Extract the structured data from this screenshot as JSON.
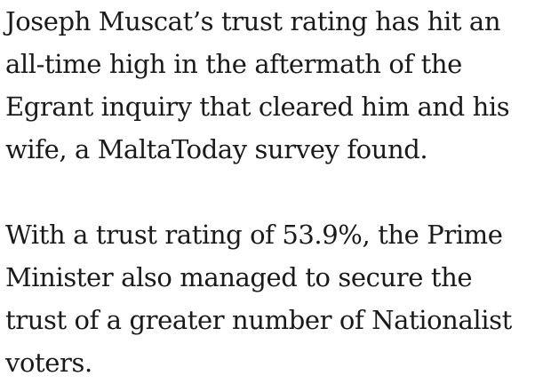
{
  "article": {
    "paragraphs": [
      {
        "lines": [
          "Joseph Muscat’s trust rating has hit an",
          "all-time high in the aftermath of the",
          "Egrant inquiry that cleared him and his",
          "wife, a MaltaToday survey found."
        ]
      },
      {
        "lines": [
          "With a trust rating of 53.9%, the Prime",
          "Minister also managed to secure the",
          "trust of a greater number of Nationalist",
          "voters."
        ]
      }
    ]
  }
}
